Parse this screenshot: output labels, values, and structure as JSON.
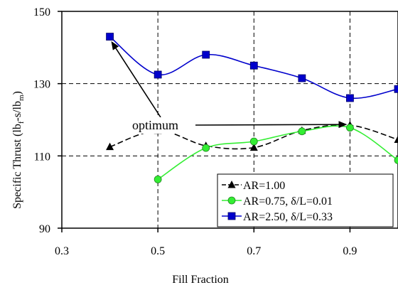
{
  "chart_data": {
    "type": "line",
    "title": "",
    "xlabel": "Fill Fraction",
    "ylabel": "Specific Thrust (lb",
    "ylabel_sub1": "f",
    "ylabel_mid": "-s/lb",
    "ylabel_sub2": "m",
    "ylabel_end": ")",
    "xlim": [
      0.3,
      1.0
    ],
    "ylim": [
      90,
      150
    ],
    "xticks": [
      0.3,
      0.5,
      0.7,
      0.9
    ],
    "yticks": [
      90,
      110,
      130,
      150
    ],
    "xtick_labels": [
      "0.3",
      "0.5",
      "0.7",
      "0.9"
    ],
    "ytick_labels": [
      "90",
      "110",
      "130",
      "150"
    ],
    "grid": "dashed",
    "legend_position": "bottom-right",
    "series": [
      {
        "name": "AR=1.00",
        "color": "#000000",
        "line_style": "dashed",
        "marker": "triangle",
        "x": [
          0.4,
          0.5,
          0.6,
          0.7,
          0.8,
          0.9,
          1.0
        ],
        "y": [
          112.5,
          117.0,
          112.8,
          112.3,
          117.0,
          118.5,
          114.5
        ]
      },
      {
        "name": "AR=0.75, δ/L=0.01",
        "color": "#33ee33",
        "line_style": "solid",
        "marker": "circle",
        "x": [
          0.5,
          0.6,
          0.7,
          0.8,
          0.9,
          1.0
        ],
        "y": [
          103.5,
          112.2,
          114.0,
          116.8,
          117.8,
          108.8
        ]
      },
      {
        "name": "AR=2.50, δ/L=0.33",
        "color": "#0000cc",
        "line_style": "solid",
        "marker": "square",
        "x": [
          0.4,
          0.5,
          0.6,
          0.7,
          0.8,
          0.9,
          1.0
        ],
        "y": [
          143.0,
          132.5,
          138.0,
          135.0,
          131.5,
          126.0,
          128.5
        ]
      }
    ],
    "annotations": [
      {
        "text": "optimum"
      }
    ]
  }
}
